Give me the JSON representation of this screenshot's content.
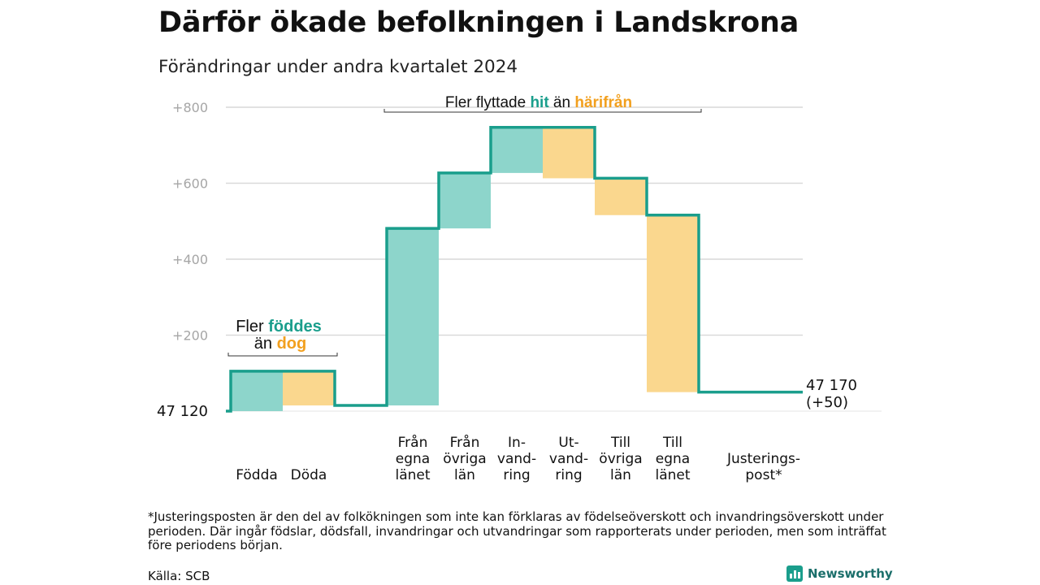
{
  "title": "Därför ökade befolkningen i Landskrona",
  "subtitle": "Förändringar under andra kvartalet 2024",
  "chart_data": {
    "type": "waterfall",
    "baseline": 0,
    "yticks": [
      {
        "value": 200,
        "label": "+200"
      },
      {
        "value": 400,
        "label": "+400"
      },
      {
        "value": 600,
        "label": "+600"
      },
      {
        "value": 800,
        "label": "+800"
      }
    ],
    "ylim": [
      0,
      800
    ],
    "steps": [
      {
        "label": [
          "Födda"
        ],
        "change": 105,
        "kind": "in"
      },
      {
        "label": [
          "Döda"
        ],
        "change": -90,
        "kind": "out"
      },
      {
        "label": [
          "Från",
          "egna",
          "länet"
        ],
        "change": 466,
        "kind": "in"
      },
      {
        "label": [
          "Från",
          "övriga",
          "län"
        ],
        "change": 146,
        "kind": "in"
      },
      {
        "label": [
          "In-",
          "vand-",
          "ring"
        ],
        "change": 120,
        "kind": "in"
      },
      {
        "label": [
          "Ut-",
          "vand-",
          "ring"
        ],
        "change": -134,
        "kind": "out"
      },
      {
        "label": [
          "Till",
          "övriga",
          "län"
        ],
        "change": -97,
        "kind": "out"
      },
      {
        "label": [
          "Till",
          "egna",
          "länet"
        ],
        "change": -466,
        "kind": "out"
      },
      {
        "label": [
          "Justerings-",
          "post*"
        ],
        "change": 0,
        "kind": "adjust"
      }
    ],
    "start_label": "47  120",
    "end_label": [
      "47 170",
      "(+50)"
    ],
    "colors": {
      "in": "#8dd5cb",
      "out": "#fad78e",
      "line": "#1a9e8c",
      "teal_text": "#1a9e8c",
      "orange_text": "#f2a01f",
      "grid": "#d9d9d9",
      "tick": "#a6a6a6"
    },
    "annotations": {
      "births": {
        "prefix": "Fler",
        "teal": "föddes",
        "line2_prefix": "än",
        "orange": "dog"
      },
      "migration": {
        "prefix": "Fler flyttade",
        "teal": "hit",
        "mid": "än",
        "orange": "härifrån"
      }
    }
  },
  "footnote": "*Justeringsposten är den del av folkökningen som inte kan förklaras av födelseöverskott och invandringsöverskott under perioden. Där ingår födslar, dödsfall, invandringar och utvandringar som rapporterats under perioden, men som inträffat före periodens början.",
  "source": "Källa: SCB",
  "brand": "Newsworthy"
}
